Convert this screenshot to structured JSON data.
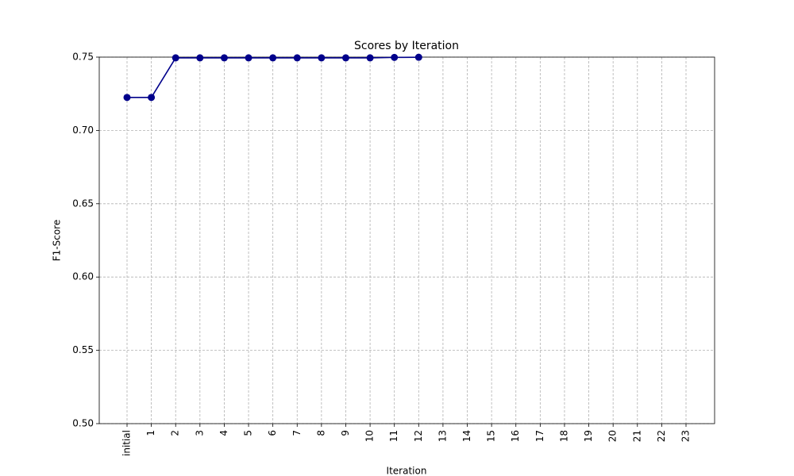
{
  "chart_data": {
    "type": "line",
    "title": "Scores by Iteration",
    "xlabel": "Iteration",
    "ylabel": "F1-Score",
    "categories": [
      "initial",
      "1",
      "2",
      "3",
      "4",
      "5",
      "6",
      "7",
      "8",
      "9",
      "10",
      "11",
      "12",
      "13",
      "14",
      "15",
      "16",
      "17",
      "18",
      "19",
      "20",
      "21",
      "22",
      "23"
    ],
    "values": [
      0.7225,
      0.7225,
      0.7495,
      0.7495,
      0.7495,
      0.7495,
      0.7495,
      0.7495,
      0.7495,
      0.7495,
      0.7495,
      0.7498,
      0.7499,
      null,
      null,
      null,
      null,
      null,
      null,
      null,
      null,
      null,
      null,
      null
    ],
    "color": "#00008b",
    "marker": "o",
    "ylim": [
      0.5,
      0.75
    ],
    "yticks": [
      {
        "value": 0.5,
        "label": "0.50"
      },
      0.55,
      {
        "value": 0.6,
        "label": "0.60"
      },
      0.65,
      {
        "value": 0.7,
        "label": "0.70"
      },
      0.75
    ],
    "grid": true
  }
}
